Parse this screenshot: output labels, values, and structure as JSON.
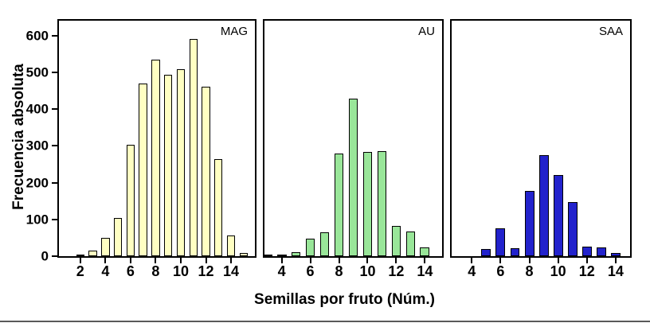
{
  "figure": {
    "ylabel": "Frecuencia absoluta",
    "xlabel": "Semillas por fruto (Núm.)"
  },
  "chart_data": [
    {
      "type": "bar",
      "panel_label": "MAG",
      "color": "#FFFFC2",
      "bar_outline": "#000000",
      "x": [
        2,
        3,
        4,
        5,
        6,
        7,
        8,
        9,
        10,
        11,
        12,
        13,
        14,
        15
      ],
      "values": [
        5,
        15,
        50,
        103,
        302,
        470,
        535,
        492,
        508,
        590,
        460,
        263,
        57,
        8
      ],
      "xticks": [
        2,
        4,
        6,
        8,
        10,
        12,
        14
      ],
      "xlim": [
        0.3,
        15.9
      ],
      "ylim": [
        0,
        640
      ],
      "yticks": [
        0,
        100,
        200,
        300,
        400,
        500,
        600
      ],
      "show_ytick_labels": true
    },
    {
      "type": "bar",
      "panel_label": "AU",
      "color": "#99E699",
      "bar_outline": "#000000",
      "x": [
        3,
        4,
        5,
        6,
        7,
        8,
        9,
        10,
        11,
        12,
        13,
        14
      ],
      "values": [
        4,
        5,
        10,
        47,
        65,
        278,
        428,
        283,
        285,
        83,
        68,
        24
      ],
      "xticks": [
        4,
        6,
        8,
        10,
        12,
        14
      ],
      "xlim": [
        2.8,
        15.2
      ],
      "ylim": [
        0,
        640
      ],
      "yticks": [
        0,
        100,
        200,
        300,
        400,
        500,
        600
      ],
      "show_ytick_labels": false
    },
    {
      "type": "bar",
      "panel_label": "SAA",
      "color": "#2222CC",
      "bar_outline": "#000000",
      "x": [
        5,
        6,
        7,
        8,
        9,
        10,
        11,
        12,
        13,
        14
      ],
      "values": [
        19,
        75,
        21,
        177,
        274,
        221,
        148,
        27,
        24,
        8
      ],
      "xticks": [
        4,
        6,
        8,
        10,
        12,
        14
      ],
      "xlim": [
        2.6,
        15.0
      ],
      "ylim": [
        0,
        640
      ],
      "yticks": [
        0,
        100,
        200,
        300,
        400,
        500,
        600
      ],
      "show_ytick_labels": false
    }
  ]
}
